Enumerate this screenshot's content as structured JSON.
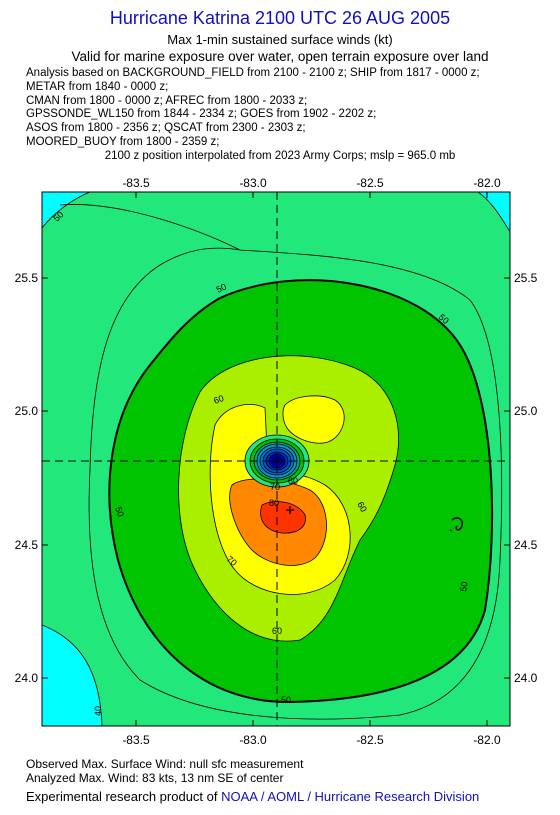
{
  "header": {
    "title": "Hurricane Katrina 2100 UTC 26 AUG 2005",
    "subtitle": "Max 1-min sustained surface winds (kt)",
    "valid": "Valid for marine exposure over water, open terrain exposure over land"
  },
  "sources": [
    "Analysis based on  BACKGROUND_FIELD from 2100 - 2100 z;  SHIP from 1817 - 0000 z;",
    "METAR from 1840 - 0000 z;",
    "CMAN from 1800 - 0000 z;  AFREC from 1800 - 2033 z;",
    "GPSSONDE_WL150 from 1844 - 2334 z;  GOES from 1902 - 2202 z;",
    "ASOS from 1800 - 2356 z;  QSCAT from 2300 - 2303 z;",
    "MOORED_BUOY from 1800 - 2359 z;"
  ],
  "interpolation": "2100 z position interpolated from 2023 Army Corps; mslp = 965.0 mb",
  "map": {
    "lon_ticks": [
      "-83.5",
      "-83.0",
      "-82.5",
      "-82.0"
    ],
    "lat_ticks": [
      "25.5",
      "25.0",
      "24.5",
      "24.0"
    ],
    "lon_range": [
      -83.9,
      -81.9
    ],
    "lat_range": [
      23.82,
      25.82
    ],
    "center": {
      "lon": -82.9,
      "lat": 24.82
    },
    "contour_labels": [
      "50",
      "50",
      "50",
      "50",
      "50",
      "50",
      "60",
      "60",
      "60",
      "60",
      "70",
      "70",
      "80",
      "40"
    ],
    "colors": {
      "cyan": "#00ffff",
      "sea_green": "#22e87c",
      "green": "#00c400",
      "yellow_green": "#aaee00",
      "yellow": "#ffff00",
      "orange": "#ff8800",
      "red": "#ff3300",
      "eye_blue": "#0000cc"
    }
  },
  "footer": {
    "observed": "Observed Max. Surface Wind: null sfc measurement",
    "analyzed": "Analyzed Max. Wind: 83 kts, 13 nm SE of center",
    "credit_prefix": "Experimental research product of ",
    "credit_org": "NOAA / AOML / Hurricane Research Division"
  }
}
